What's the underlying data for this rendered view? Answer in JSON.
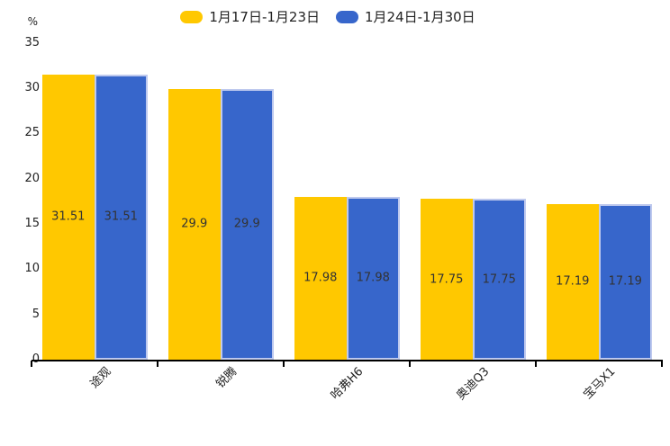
{
  "chart_data": {
    "type": "bar",
    "title": "",
    "ylabel": "%",
    "ylim": [
      0,
      35
    ],
    "ytick_step": 5,
    "yticks": [
      0,
      5,
      10,
      15,
      20,
      25,
      30,
      35
    ],
    "grid": false,
    "legend_position": "top",
    "background": "#ffffff",
    "axis_color": "#000000",
    "label_color": "#333333",
    "categories": [
      "途观",
      "锐腾",
      "哈弗H6",
      "奥迪Q3",
      "宝马X1"
    ],
    "series": [
      {
        "name": "1月17日-1月23日",
        "color": "#FFC800",
        "values": [
          31.51,
          29.9,
          17.98,
          17.75,
          17.19
        ],
        "labels": [
          "31.51",
          "29.9",
          "17.98",
          "17.75",
          "17.19"
        ]
      },
      {
        "name": "1月24日-1月30日",
        "color": "#3766CB",
        "border_color": "#BEC9EE",
        "values": [
          31.51,
          29.9,
          17.98,
          17.75,
          17.19
        ],
        "labels": [
          "31.51",
          "29.9",
          "17.98",
          "17.75",
          "17.19"
        ]
      }
    ]
  }
}
